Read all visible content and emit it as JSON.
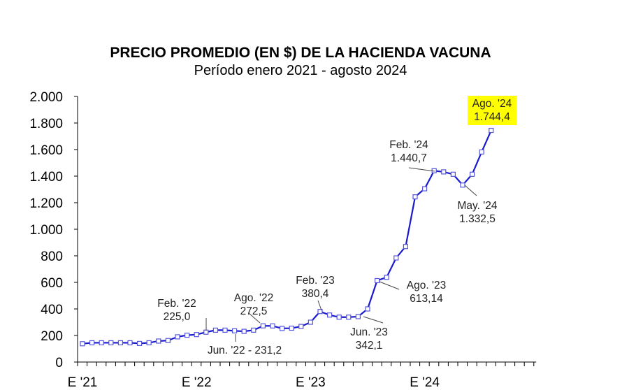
{
  "chart_data": {
    "type": "line",
    "title": "PRECIO PROMEDIO (EN $) DE LA HACIENDA VACUNA",
    "subtitle": "Período enero 2021 - agosto 2024",
    "xlabel": "",
    "ylabel": "",
    "ylim": [
      0,
      2000
    ],
    "yticks": [
      0,
      200,
      400,
      600,
      800,
      1000,
      1200,
      1400,
      1600,
      1800,
      2000
    ],
    "ytick_labels": [
      "0",
      "200",
      "400",
      "600",
      "800",
      "1.000",
      "1.200",
      "1.400",
      "1.600",
      "1.800",
      "2.000"
    ],
    "x_major_labels": [
      {
        "month_index": 0,
        "label": "E '21"
      },
      {
        "month_index": 12,
        "label": "E '22"
      },
      {
        "month_index": 24,
        "label": "E '23"
      },
      {
        "month_index": 36,
        "label": "E '24"
      }
    ],
    "x_tick_count": 48,
    "grid": false,
    "series": [
      {
        "name": "Precio promedio",
        "color": "#1a1acc",
        "marker": "square",
        "values": [
          138,
          145,
          145,
          145,
          145,
          145,
          140,
          145,
          158,
          162,
          190,
          202,
          207,
          225.0,
          240,
          240,
          235,
          231.2,
          240,
          272.5,
          272,
          253,
          255,
          268,
          300,
          380.4,
          354,
          338,
          338,
          342.1,
          400,
          613.14,
          638,
          784,
          870,
          1244,
          1305,
          1440.7,
          1432,
          1414,
          1332.5,
          1414,
          1582,
          1744.4
        ]
      }
    ],
    "annotations": [
      {
        "index": 13,
        "line1": "Feb. '22",
        "line2": "225,0"
      },
      {
        "index": 17,
        "line1": "Jun. '22 - 231,2",
        "line2": ""
      },
      {
        "index": 19,
        "line1": "Ago. '22",
        "line2": "272,5"
      },
      {
        "index": 25,
        "line1": "Feb. '23",
        "line2": "380,4"
      },
      {
        "index": 29,
        "line1": "Jun. '23",
        "line2": "342,1"
      },
      {
        "index": 31,
        "line1": "Ago. '23",
        "line2": "613,14"
      },
      {
        "index": 37,
        "line1": "Feb. '24",
        "line2": "1.440,7"
      },
      {
        "index": 40,
        "line1": "May. '24",
        "line2": "1.332,5"
      },
      {
        "index": 43,
        "line1": "Ago. '24",
        "line2": "1.744,4",
        "highlight": "#ffff00"
      }
    ]
  }
}
